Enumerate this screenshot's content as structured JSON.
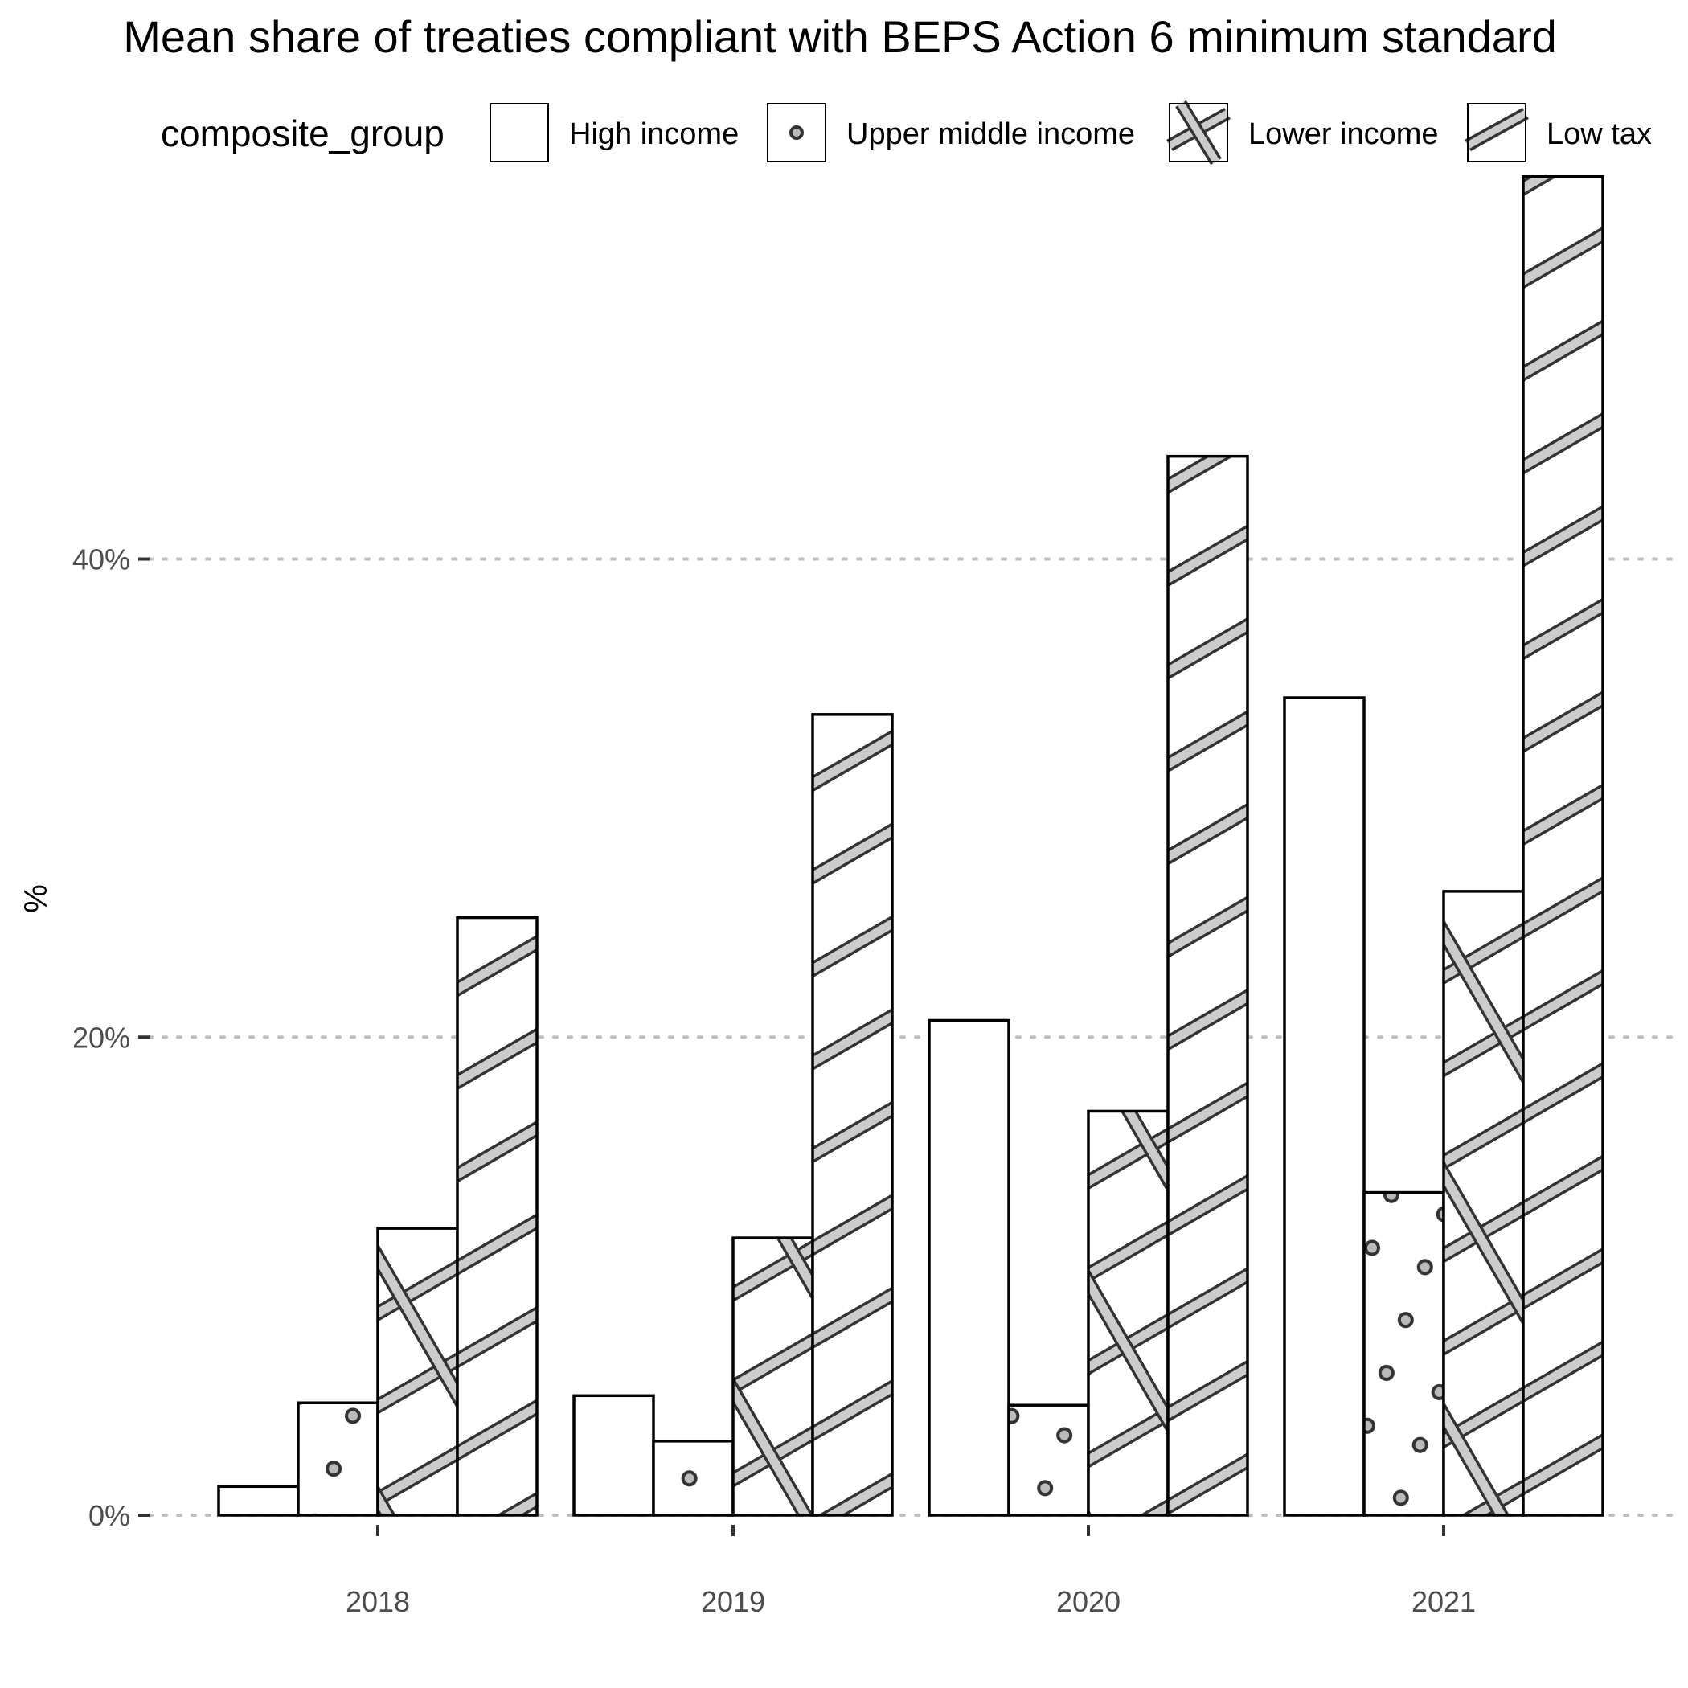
{
  "chart_data": {
    "type": "bar",
    "title": "Mean share of treaties compliant with BEPS Action 6 minimum standard",
    "xlabel": "",
    "ylabel": "%",
    "legend_title": "composite_group",
    "legend_position": "top",
    "categories": [
      "2018",
      "2019",
      "2020",
      "2021"
    ],
    "y_ticks": [
      0,
      20,
      40
    ],
    "y_tick_labels": [
      "0%",
      "20%",
      "40%"
    ],
    "ylim": [
      0,
      57
    ],
    "grid": "horizontal dotted",
    "series": [
      {
        "name": "High income",
        "pattern": "none",
        "values": [
          1.2,
          5.0,
          20.7,
          34.2
        ]
      },
      {
        "name": "Upper middle income",
        "pattern": "circle",
        "values": [
          4.7,
          3.1,
          4.6,
          13.5
        ]
      },
      {
        "name": "Lower income",
        "pattern": "crosshatch",
        "values": [
          12.0,
          11.6,
          16.9,
          26.1
        ]
      },
      {
        "name": "Low tax",
        "pattern": "stripe",
        "values": [
          25.0,
          33.5,
          44.3,
          56.0
        ]
      }
    ],
    "colors": {
      "bar_fill": "#ffffff",
      "pattern_fill": "#cccccc",
      "outline": "#000000",
      "tick_text": "#4d4d4d",
      "grid": "#bfbfbf"
    }
  }
}
